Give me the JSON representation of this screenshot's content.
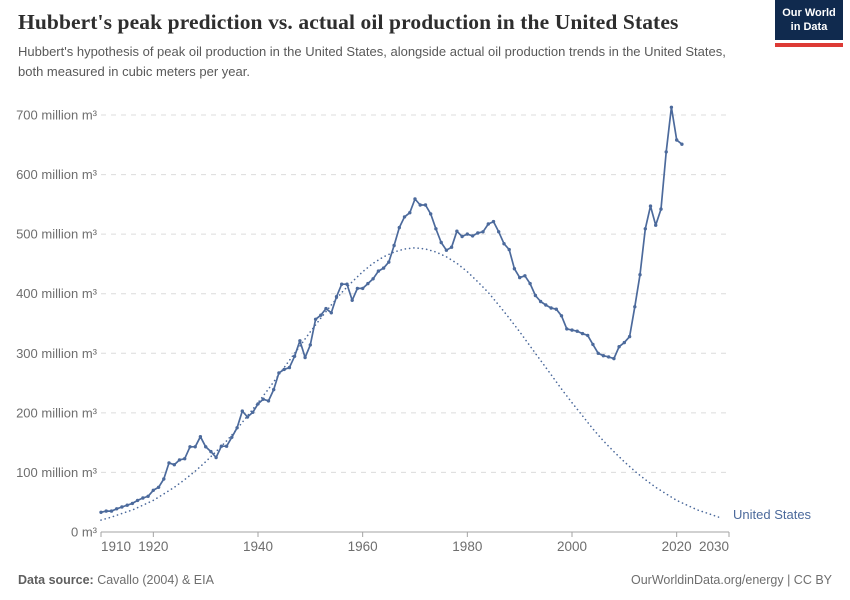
{
  "header": {
    "title": "Hubbert's peak prediction vs. actual oil production in the United States",
    "subtitle": "Hubbert's hypothesis of peak oil production in the United States, alongside actual oil production trends in the United States, both measured in cubic meters per year."
  },
  "logo": {
    "line1": "Our World",
    "line2": "in Data",
    "bg_color": "#102a4e",
    "accent_color": "#dd3a35"
  },
  "chart_data": {
    "type": "line",
    "title": "Hubbert's peak prediction vs. actual oil production in the United States",
    "unit": "million m³ per year",
    "xlabel": "",
    "ylabel": "",
    "xlim": [
      1910,
      2030
    ],
    "ylim": [
      0,
      700
    ],
    "grid": "horizontal dashed",
    "x_ticks": [
      1910,
      1920,
      1940,
      1960,
      1980,
      2000,
      2020,
      2030
    ],
    "y_ticks": [
      {
        "value": 0,
        "label": "0 m³"
      },
      {
        "value": 100,
        "label": "100 million m³"
      },
      {
        "value": 200,
        "label": "200 million m³"
      },
      {
        "value": 300,
        "label": "300 million m³"
      },
      {
        "value": 400,
        "label": "400 million m³"
      },
      {
        "value": 500,
        "label": "500 million m³"
      },
      {
        "value": 600,
        "label": "600 million m³"
      },
      {
        "value": 700,
        "label": "700 million m³"
      }
    ],
    "annotation": {
      "text": "United States",
      "color": "#4c6a9c"
    },
    "series": [
      {
        "name": "United States actual oil production",
        "style": "solid-with-markers",
        "color": "#4c6a9c",
        "years": [
          1910,
          1911,
          1912,
          1913,
          1914,
          1915,
          1916,
          1917,
          1918,
          1919,
          1920,
          1921,
          1922,
          1923,
          1924,
          1925,
          1926,
          1927,
          1928,
          1929,
          1930,
          1931,
          1932,
          1933,
          1934,
          1935,
          1936,
          1937,
          1938,
          1939,
          1940,
          1941,
          1942,
          1943,
          1944,
          1945,
          1946,
          1947,
          1948,
          1949,
          1950,
          1951,
          1952,
          1953,
          1954,
          1955,
          1956,
          1957,
          1958,
          1959,
          1960,
          1961,
          1962,
          1963,
          1964,
          1965,
          1966,
          1967,
          1968,
          1969,
          1970,
          1971,
          1972,
          1973,
          1974,
          1975,
          1976,
          1977,
          1978,
          1979,
          1980,
          1981,
          1982,
          1983,
          1984,
          1985,
          1986,
          1987,
          1988,
          1989,
          1990,
          1991,
          1992,
          1993,
          1994,
          1995,
          1996,
          1997,
          1998,
          1999,
          2000,
          2001,
          2002,
          2003,
          2004,
          2005,
          2006,
          2007,
          2008,
          2009,
          2010,
          2011,
          2012,
          2013,
          2014,
          2015,
          2016,
          2017,
          2018,
          2019,
          2020,
          2021
        ],
        "values": [
          33,
          35,
          35,
          39,
          42,
          45,
          48,
          53,
          57,
          60,
          70,
          75,
          89,
          116,
          113,
          121,
          123,
          143,
          143,
          160,
          143,
          135,
          125,
          144,
          144,
          159,
          175,
          203,
          193,
          201,
          215,
          223,
          220,
          239,
          267,
          273,
          276,
          295,
          321,
          293,
          314,
          357,
          364,
          375,
          368,
          395,
          416,
          416,
          389,
          409,
          409,
          417,
          425,
          438,
          443,
          453,
          481,
          511,
          529,
          536,
          559,
          549,
          549,
          534,
          509,
          486,
          473,
          478,
          505,
          496,
          500,
          497,
          502,
          504,
          517,
          521,
          504,
          484,
          474,
          442,
          427,
          430,
          417,
          397,
          387,
          381,
          376,
          374,
          363,
          341,
          339,
          337,
          333,
          330,
          315,
          300,
          296,
          294,
          291,
          311,
          318,
          328,
          378,
          432,
          509,
          547,
          515,
          542,
          638,
          713,
          658,
          651
        ]
      },
      {
        "name": "Hubbert's peak prediction",
        "style": "dotted",
        "color": "#4c6a9c",
        "years": [
          1910,
          1912,
          1914,
          1916,
          1918,
          1920,
          1922,
          1924,
          1926,
          1928,
          1930,
          1932,
          1934,
          1936,
          1938,
          1940,
          1942,
          1944,
          1946,
          1948,
          1950,
          1952,
          1954,
          1956,
          1958,
          1960,
          1962,
          1964,
          1966,
          1968,
          1970,
          1972,
          1974,
          1976,
          1978,
          1980,
          1982,
          1984,
          1986,
          1988,
          1990,
          1992,
          1994,
          1996,
          1998,
          2000,
          2002,
          2004,
          2006,
          2008,
          2010,
          2012,
          2014,
          2016,
          2018,
          2020,
          2022,
          2024,
          2026,
          2028
        ],
        "values": [
          20,
          25,
          31,
          37,
          45,
          53,
          64,
          75,
          88,
          102,
          118,
          135,
          153,
          173,
          195,
          217,
          240,
          264,
          288,
          312,
          336,
          359,
          381,
          402,
          420,
          437,
          451,
          462,
          470,
          475,
          477,
          475,
          470,
          462,
          451,
          437,
          420,
          402,
          381,
          359,
          336,
          312,
          288,
          264,
          240,
          217,
          195,
          173,
          153,
          135,
          118,
          102,
          88,
          75,
          64,
          53,
          45,
          37,
          31,
          25
        ]
      }
    ],
    "peak_annotation_note": "Prediction peaks at 477 million m³ around 1970"
  },
  "footer": {
    "source_label": "Data source:",
    "source_value": " Cavallo (2004) & EIA",
    "right": "OurWorldinData.org/energy | CC BY"
  }
}
